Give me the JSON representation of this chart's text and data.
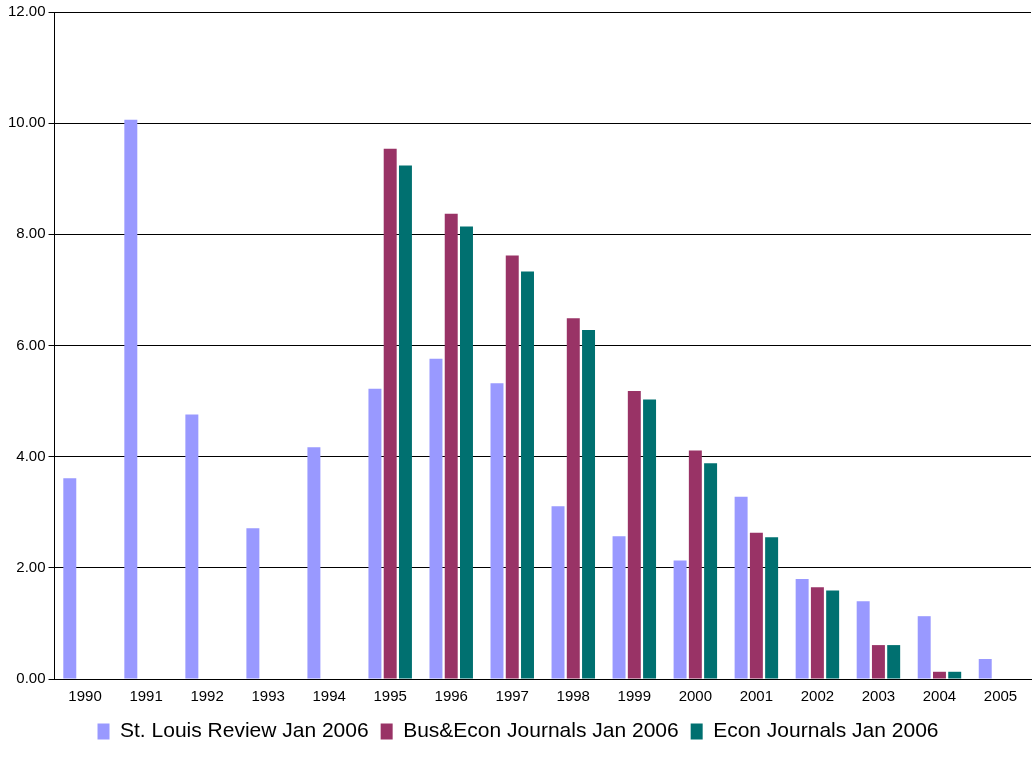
{
  "chart_data": {
    "type": "bar",
    "categories": [
      "1990",
      "1991",
      "1992",
      "1993",
      "1994",
      "1995",
      "1996",
      "1997",
      "1998",
      "1999",
      "2000",
      "2001",
      "2002",
      "2003",
      "2004",
      "2005"
    ],
    "series": [
      {
        "name": "St. Louis Review Jan 2006",
        "color": "#9999ff",
        "values": [
          3.61,
          10.06,
          4.76,
          2.71,
          4.17,
          5.22,
          5.76,
          5.32,
          3.11,
          2.57,
          2.13,
          3.28,
          1.8,
          1.4,
          1.13,
          0.36
        ]
      },
      {
        "name": "Bus&Econ Journals Jan 2006",
        "color": "#993366",
        "values": [
          null,
          null,
          null,
          null,
          null,
          9.54,
          8.37,
          7.62,
          6.49,
          5.18,
          4.11,
          2.63,
          1.65,
          0.61,
          0.13,
          null
        ]
      },
      {
        "name": "Econ Journals Jan 2006",
        "color": "#007070",
        "values": [
          null,
          null,
          null,
          null,
          null,
          9.24,
          8.14,
          7.33,
          6.28,
          5.03,
          3.88,
          2.55,
          1.59,
          0.61,
          0.13,
          null
        ]
      }
    ],
    "ylim": [
      0,
      12
    ],
    "yticks": [
      {
        "value": 0,
        "label": "0.00"
      },
      {
        "value": 2,
        "label": "2.00"
      },
      {
        "value": 4,
        "label": "4.00"
      },
      {
        "value": 6,
        "label": "6.00"
      },
      {
        "value": 8,
        "label": "8.00"
      },
      {
        "value": 10,
        "label": "10.00"
      },
      {
        "value": 12,
        "label": "12.00"
      }
    ],
    "grid": "y",
    "legend": "bottom"
  }
}
